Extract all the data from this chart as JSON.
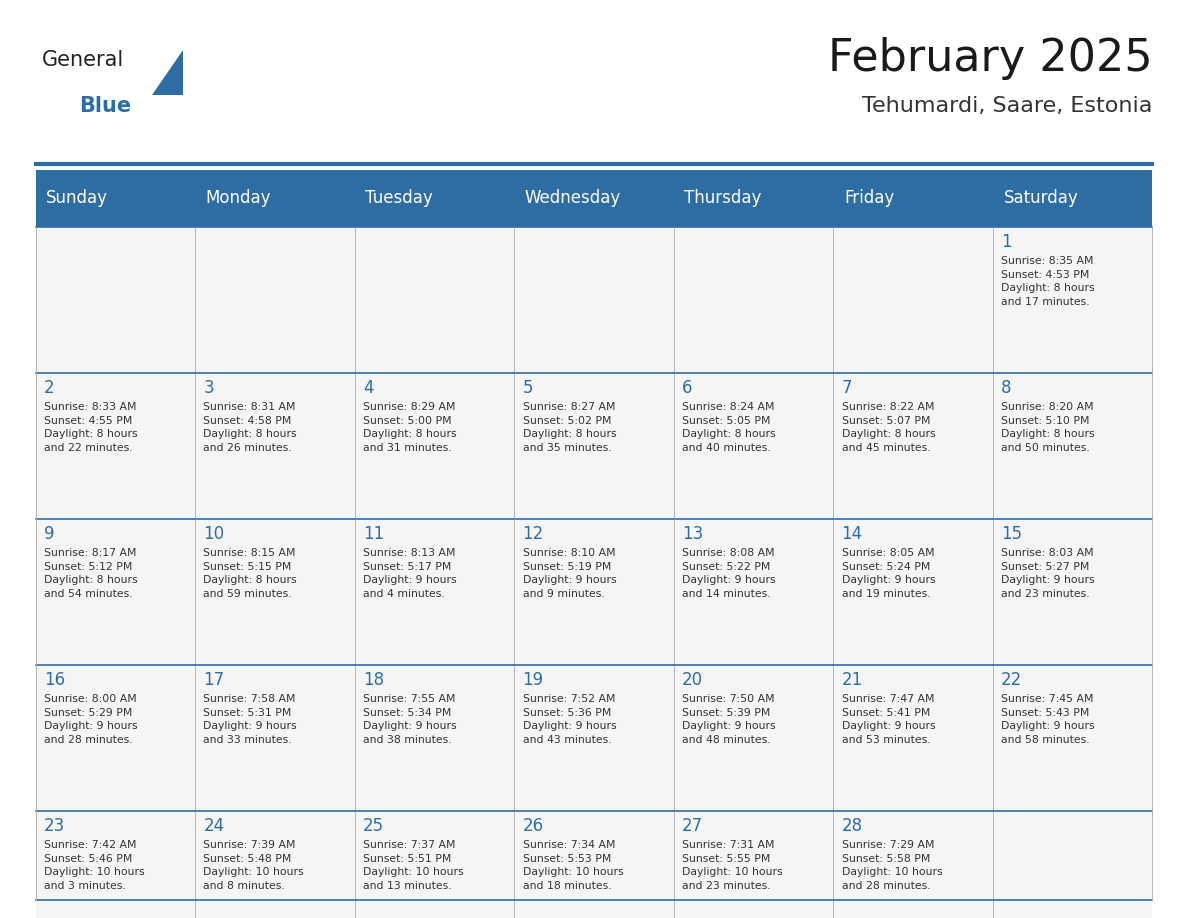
{
  "title": "February 2025",
  "subtitle": "Tehumardi, Saare, Estonia",
  "header_bg": "#2E6DA4",
  "header_text_color": "#FFFFFF",
  "day_number_color": "#2E6DA4",
  "cell_text_color": "#333333",
  "border_color": "#2E6DA4",
  "cell_border_color": "#AAAAAA",
  "days_of_week": [
    "Sunday",
    "Monday",
    "Tuesday",
    "Wednesday",
    "Thursday",
    "Friday",
    "Saturday"
  ],
  "weeks": [
    [
      {
        "day": "",
        "info": ""
      },
      {
        "day": "",
        "info": ""
      },
      {
        "day": "",
        "info": ""
      },
      {
        "day": "",
        "info": ""
      },
      {
        "day": "",
        "info": ""
      },
      {
        "day": "",
        "info": ""
      },
      {
        "day": "1",
        "info": "Sunrise: 8:35 AM\nSunset: 4:53 PM\nDaylight: 8 hours\nand 17 minutes."
      }
    ],
    [
      {
        "day": "2",
        "info": "Sunrise: 8:33 AM\nSunset: 4:55 PM\nDaylight: 8 hours\nand 22 minutes."
      },
      {
        "day": "3",
        "info": "Sunrise: 8:31 AM\nSunset: 4:58 PM\nDaylight: 8 hours\nand 26 minutes."
      },
      {
        "day": "4",
        "info": "Sunrise: 8:29 AM\nSunset: 5:00 PM\nDaylight: 8 hours\nand 31 minutes."
      },
      {
        "day": "5",
        "info": "Sunrise: 8:27 AM\nSunset: 5:02 PM\nDaylight: 8 hours\nand 35 minutes."
      },
      {
        "day": "6",
        "info": "Sunrise: 8:24 AM\nSunset: 5:05 PM\nDaylight: 8 hours\nand 40 minutes."
      },
      {
        "day": "7",
        "info": "Sunrise: 8:22 AM\nSunset: 5:07 PM\nDaylight: 8 hours\nand 45 minutes."
      },
      {
        "day": "8",
        "info": "Sunrise: 8:20 AM\nSunset: 5:10 PM\nDaylight: 8 hours\nand 50 minutes."
      }
    ],
    [
      {
        "day": "9",
        "info": "Sunrise: 8:17 AM\nSunset: 5:12 PM\nDaylight: 8 hours\nand 54 minutes."
      },
      {
        "day": "10",
        "info": "Sunrise: 8:15 AM\nSunset: 5:15 PM\nDaylight: 8 hours\nand 59 minutes."
      },
      {
        "day": "11",
        "info": "Sunrise: 8:13 AM\nSunset: 5:17 PM\nDaylight: 9 hours\nand 4 minutes."
      },
      {
        "day": "12",
        "info": "Sunrise: 8:10 AM\nSunset: 5:19 PM\nDaylight: 9 hours\nand 9 minutes."
      },
      {
        "day": "13",
        "info": "Sunrise: 8:08 AM\nSunset: 5:22 PM\nDaylight: 9 hours\nand 14 minutes."
      },
      {
        "day": "14",
        "info": "Sunrise: 8:05 AM\nSunset: 5:24 PM\nDaylight: 9 hours\nand 19 minutes."
      },
      {
        "day": "15",
        "info": "Sunrise: 8:03 AM\nSunset: 5:27 PM\nDaylight: 9 hours\nand 23 minutes."
      }
    ],
    [
      {
        "day": "16",
        "info": "Sunrise: 8:00 AM\nSunset: 5:29 PM\nDaylight: 9 hours\nand 28 minutes."
      },
      {
        "day": "17",
        "info": "Sunrise: 7:58 AM\nSunset: 5:31 PM\nDaylight: 9 hours\nand 33 minutes."
      },
      {
        "day": "18",
        "info": "Sunrise: 7:55 AM\nSunset: 5:34 PM\nDaylight: 9 hours\nand 38 minutes."
      },
      {
        "day": "19",
        "info": "Sunrise: 7:52 AM\nSunset: 5:36 PM\nDaylight: 9 hours\nand 43 minutes."
      },
      {
        "day": "20",
        "info": "Sunrise: 7:50 AM\nSunset: 5:39 PM\nDaylight: 9 hours\nand 48 minutes."
      },
      {
        "day": "21",
        "info": "Sunrise: 7:47 AM\nSunset: 5:41 PM\nDaylight: 9 hours\nand 53 minutes."
      },
      {
        "day": "22",
        "info": "Sunrise: 7:45 AM\nSunset: 5:43 PM\nDaylight: 9 hours\nand 58 minutes."
      }
    ],
    [
      {
        "day": "23",
        "info": "Sunrise: 7:42 AM\nSunset: 5:46 PM\nDaylight: 10 hours\nand 3 minutes."
      },
      {
        "day": "24",
        "info": "Sunrise: 7:39 AM\nSunset: 5:48 PM\nDaylight: 10 hours\nand 8 minutes."
      },
      {
        "day": "25",
        "info": "Sunrise: 7:37 AM\nSunset: 5:51 PM\nDaylight: 10 hours\nand 13 minutes."
      },
      {
        "day": "26",
        "info": "Sunrise: 7:34 AM\nSunset: 5:53 PM\nDaylight: 10 hours\nand 18 minutes."
      },
      {
        "day": "27",
        "info": "Sunrise: 7:31 AM\nSunset: 5:55 PM\nDaylight: 10 hours\nand 23 minutes."
      },
      {
        "day": "28",
        "info": "Sunrise: 7:29 AM\nSunset: 5:58 PM\nDaylight: 10 hours\nand 28 minutes."
      },
      {
        "day": "",
        "info": ""
      }
    ]
  ],
  "logo_text1": "General",
  "logo_text2": "Blue",
  "logo_text1_color": "#222222",
  "logo_text2_color": "#2E6DA4",
  "logo_triangle_color": "#2E6DA4"
}
